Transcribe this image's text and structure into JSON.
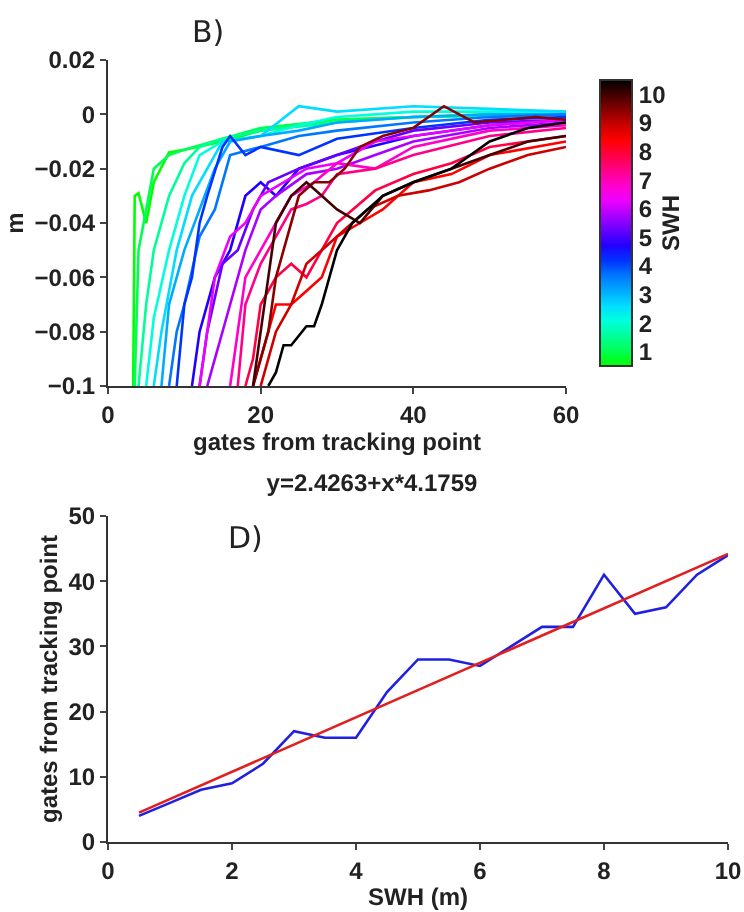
{
  "chart_data": [
    {
      "type": "line",
      "xlabel": "gates from tracking point",
      "ylabel": "m",
      "clabel": "SWH",
      "annotations": [
        "B)"
      ],
      "xlim": [
        0,
        60
      ],
      "xticks": [
        0,
        20,
        40,
        60
      ],
      "ylim": [
        -0.1,
        0.02
      ],
      "yticks": [
        {
          "value": -0.1,
          "label": "−0.1"
        },
        {
          "value": -0.08,
          "label": "−0.08"
        },
        {
          "value": -0.06,
          "label": "−0.06"
        },
        {
          "value": -0.04,
          "label": "−0.04"
        },
        {
          "value": -0.02,
          "label": "−0.02"
        },
        0,
        0.02
      ],
      "clim": [
        0.5,
        10.5
      ],
      "cticks": [
        1,
        2,
        3,
        4,
        5,
        6,
        7,
        8,
        9,
        10
      ],
      "legend": false,
      "series": [
        {
          "color": "#00ff00",
          "x": [
            3.3,
            3.5,
            4,
            5,
            6,
            8,
            10,
            15,
            20,
            30,
            50,
            60
          ],
          "values": [
            -0.1,
            -0.03,
            -0.029,
            -0.04,
            -0.025,
            -0.014,
            -0.013,
            -0.01,
            -0.006,
            -0.002,
            0,
            0
          ]
        },
        {
          "color": "#00ff55",
          "x": [
            3.5,
            4,
            5,
            6,
            8,
            10,
            15,
            20,
            30,
            40,
            60
          ],
          "values": [
            -0.1,
            -0.05,
            -0.035,
            -0.02,
            -0.015,
            -0.013,
            -0.009,
            -0.005,
            -0.002,
            -0.001,
            0
          ]
        },
        {
          "color": "#00ff99",
          "x": [
            4,
            5,
            6,
            8,
            10,
            12,
            15,
            20,
            30,
            40,
            60
          ],
          "values": [
            -0.1,
            -0.07,
            -0.05,
            -0.03,
            -0.018,
            -0.012,
            -0.009,
            -0.006,
            -0.003,
            -0.001,
            0
          ]
        },
        {
          "color": "#00ffdd",
          "x": [
            5,
            6,
            8,
            10,
            12,
            15,
            20,
            25,
            30,
            40,
            60
          ],
          "values": [
            -0.1,
            -0.075,
            -0.05,
            -0.03,
            -0.015,
            -0.01,
            -0.008,
            -0.004,
            -0.001,
            0.001,
            0.001
          ]
        },
        {
          "color": "#00ddff",
          "x": [
            6,
            7,
            9,
            11,
            13,
            15,
            20,
            25,
            30,
            40,
            50,
            60
          ],
          "values": [
            -0.1,
            -0.08,
            -0.05,
            -0.03,
            -0.02,
            -0.01,
            -0.008,
            0.003,
            0.001,
            0.003,
            0.002,
            0.001
          ]
        },
        {
          "color": "#00aaff",
          "x": [
            7,
            8,
            10,
            12,
            14,
            16,
            20,
            25,
            30,
            40,
            50,
            60
          ],
          "values": [
            -0.1,
            -0.07,
            -0.05,
            -0.035,
            -0.02,
            -0.01,
            -0.008,
            -0.006,
            -0.003,
            -0.001,
            0,
            0
          ]
        },
        {
          "color": "#0077ff",
          "x": [
            8,
            9,
            10,
            12,
            14,
            16,
            20,
            25,
            30,
            40,
            50,
            60
          ],
          "values": [
            -0.1,
            -0.08,
            -0.07,
            -0.045,
            -0.035,
            -0.015,
            -0.012,
            -0.008,
            -0.006,
            -0.003,
            -0.001,
            0
          ]
        },
        {
          "color": "#0033ff",
          "x": [
            9,
            10,
            11,
            12,
            13,
            15,
            16,
            18,
            20,
            25,
            30,
            40,
            50,
            60
          ],
          "values": [
            -0.1,
            -0.07,
            -0.06,
            -0.04,
            -0.03,
            -0.012,
            -0.008,
            -0.015,
            -0.012,
            -0.015,
            -0.009,
            -0.005,
            -0.002,
            -0.001
          ]
        },
        {
          "color": "#2200ff",
          "x": [
            11,
            12,
            14,
            16,
            18,
            20,
            22,
            25,
            30,
            40,
            50,
            60
          ],
          "values": [
            -0.1,
            -0.08,
            -0.06,
            -0.05,
            -0.03,
            -0.025,
            -0.03,
            -0.02,
            -0.015,
            -0.008,
            -0.004,
            -0.002
          ]
        },
        {
          "color": "#6600ff",
          "x": [
            12,
            13,
            15,
            17,
            19,
            21,
            25,
            30,
            35,
            40,
            50,
            60
          ],
          "values": [
            -0.1,
            -0.08,
            -0.055,
            -0.05,
            -0.035,
            -0.025,
            -0.02,
            -0.015,
            -0.01,
            -0.006,
            -0.003,
            -0.002
          ]
        },
        {
          "color": "#aa00ff",
          "x": [
            13,
            14,
            16,
            18,
            20,
            22,
            26,
            30,
            35,
            40,
            50,
            60
          ],
          "values": [
            -0.1,
            -0.09,
            -0.07,
            -0.05,
            -0.035,
            -0.03,
            -0.022,
            -0.02,
            -0.015,
            -0.01,
            -0.005,
            -0.003
          ]
        },
        {
          "color": "#ee00ff",
          "x": [
            12,
            13,
            14,
            16,
            18,
            20,
            23,
            26,
            30,
            35,
            40,
            50,
            60
          ],
          "values": [
            -0.1,
            -0.08,
            -0.06,
            -0.045,
            -0.04,
            -0.03,
            -0.025,
            -0.02,
            -0.018,
            -0.01,
            -0.008,
            -0.004,
            -0.002
          ]
        },
        {
          "color": "#ff00cc",
          "x": [
            16,
            17,
            18,
            20,
            22,
            24,
            27,
            30,
            35,
            40,
            50,
            60
          ],
          "values": [
            -0.1,
            -0.08,
            -0.06,
            -0.05,
            -0.04,
            -0.03,
            -0.025,
            -0.018,
            -0.02,
            -0.012,
            -0.006,
            -0.004
          ]
        },
        {
          "color": "#ff0088",
          "x": [
            17,
            18,
            20,
            22,
            24,
            26,
            28,
            30,
            35,
            40,
            50,
            60
          ],
          "values": [
            -0.1,
            -0.07,
            -0.055,
            -0.045,
            -0.035,
            -0.033,
            -0.03,
            -0.022,
            -0.02,
            -0.015,
            -0.008,
            -0.005
          ]
        },
        {
          "color": "#ff0044",
          "x": [
            18,
            19,
            20,
            22,
            24,
            26,
            28,
            30,
            35,
            40,
            45,
            50,
            60
          ],
          "values": [
            -0.1,
            -0.09,
            -0.07,
            -0.06,
            -0.055,
            -0.06,
            -0.05,
            -0.04,
            -0.028,
            -0.022,
            -0.018,
            -0.012,
            -0.008
          ]
        },
        {
          "color": "#ff0000",
          "x": [
            19,
            20,
            21,
            22,
            24,
            26,
            28,
            30,
            33,
            36,
            40,
            45,
            50,
            60
          ],
          "values": [
            -0.1,
            -0.09,
            -0.08,
            -0.07,
            -0.07,
            -0.065,
            -0.06,
            -0.045,
            -0.04,
            -0.035,
            -0.025,
            -0.022,
            -0.015,
            -0.01
          ]
        },
        {
          "color": "#cc0000",
          "x": [
            20,
            21,
            22,
            24,
            26,
            28,
            30,
            34,
            38,
            42,
            46,
            50,
            55,
            60
          ],
          "values": [
            -0.1,
            -0.09,
            -0.08,
            -0.07,
            -0.055,
            -0.05,
            -0.045,
            -0.035,
            -0.03,
            -0.028,
            -0.025,
            -0.02,
            -0.015,
            -0.012
          ]
        },
        {
          "color": "#880000",
          "x": [
            19,
            20,
            21,
            22,
            23,
            25,
            27,
            29,
            31,
            33,
            36,
            40,
            44,
            48,
            52,
            56,
            60
          ],
          "values": [
            -0.1,
            -0.09,
            -0.08,
            -0.06,
            -0.05,
            -0.03,
            -0.025,
            -0.025,
            -0.02,
            -0.012,
            -0.008,
            -0.005,
            0.003,
            -0.003,
            -0.002,
            -0.001,
            -0.002
          ]
        },
        {
          "color": "#440000",
          "x": [
            19,
            20,
            21,
            22,
            24,
            26,
            28,
            30,
            33,
            36,
            40,
            45,
            50,
            55,
            60
          ],
          "values": [
            -0.1,
            -0.08,
            -0.06,
            -0.04,
            -0.03,
            -0.025,
            -0.03,
            -0.035,
            -0.04,
            -0.03,
            -0.025,
            -0.02,
            -0.015,
            -0.01,
            -0.008
          ]
        },
        {
          "color": "#000000",
          "x": [
            21,
            22,
            23,
            24,
            26,
            27,
            28,
            30,
            31,
            32,
            34,
            36,
            40,
            45,
            50,
            55,
            60
          ],
          "values": [
            -0.1,
            -0.095,
            -0.085,
            -0.085,
            -0.078,
            -0.078,
            -0.07,
            -0.05,
            -0.045,
            -0.04,
            -0.035,
            -0.03,
            -0.025,
            -0.02,
            -0.01,
            -0.005,
            -0.003
          ]
        }
      ]
    },
    {
      "type": "line",
      "title": "y=2.4263+x*4.1759",
      "xlabel": "SWH (m)",
      "ylabel": "gates from tracking point",
      "annotations": [
        "D)"
      ],
      "xlim": [
        0,
        10
      ],
      "xticks": [
        0,
        2,
        4,
        6,
        8,
        10
      ],
      "ylim": [
        0,
        50
      ],
      "yticks": [
        0,
        10,
        20,
        30,
        40,
        50
      ],
      "legend": false,
      "series": [
        {
          "color": "#2020e0",
          "x": [
            0.5,
            1,
            1.5,
            2,
            2.5,
            3,
            3.5,
            4,
            4.5,
            5,
            5.5,
            6,
            6.5,
            7,
            7.5,
            8,
            8.5,
            9,
            9.5,
            10
          ],
          "values": [
            4,
            6,
            8,
            9,
            12,
            17,
            16,
            16,
            23,
            28,
            28,
            27,
            30,
            33,
            33,
            41,
            35,
            36,
            41,
            44
          ]
        },
        {
          "color": "#e02020",
          "x": [
            0.5,
            10
          ],
          "values": [
            4.5,
            44.2
          ]
        }
      ]
    }
  ]
}
